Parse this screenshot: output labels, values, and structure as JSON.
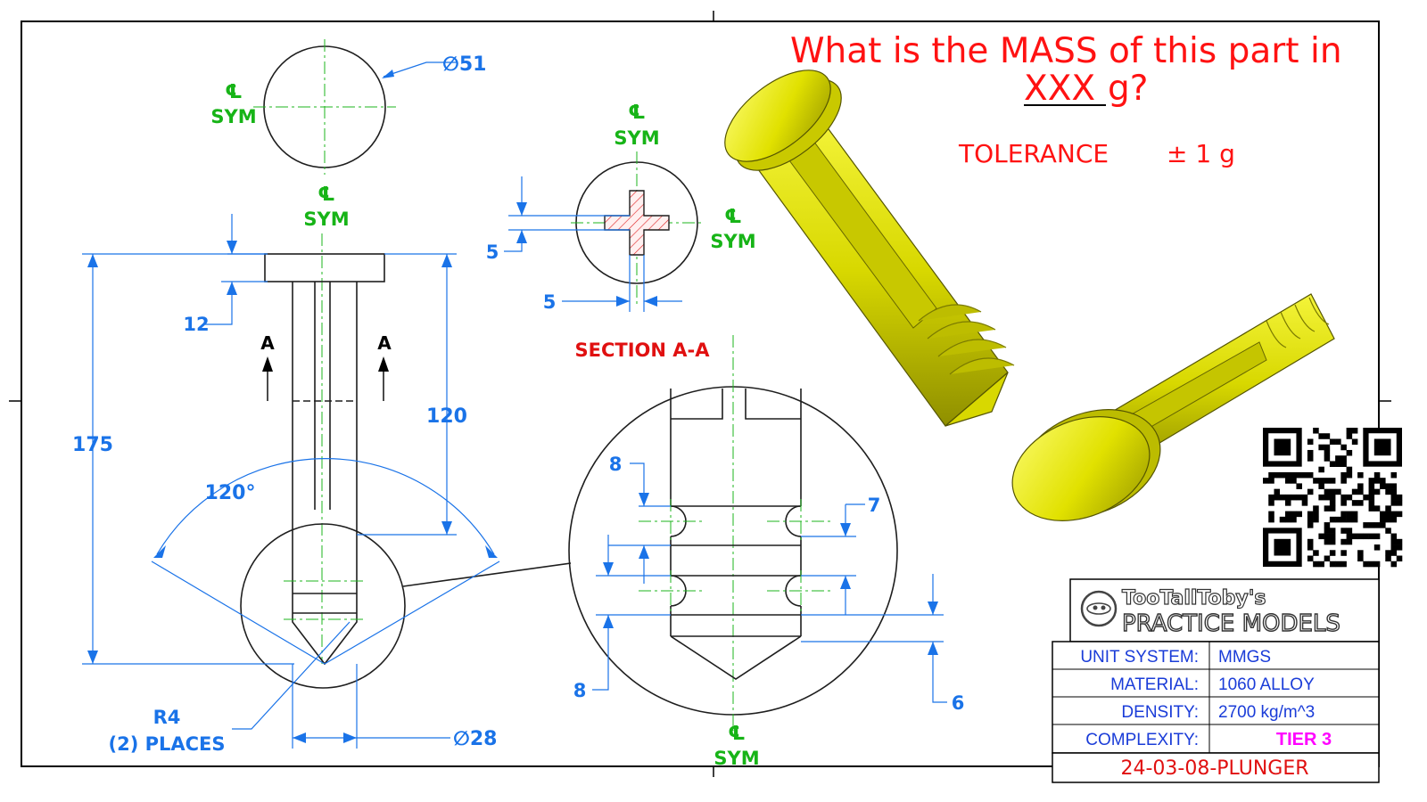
{
  "question": {
    "line1": "What is the MASS of this part in",
    "line2_underlined": "XXX",
    "line2_rest": " g?",
    "tolerance": "TOLERANCE",
    "tolerance_value": "± 1 g",
    "color": "#ff1212"
  },
  "dimensions": {
    "top_diameter": "∅51",
    "height_total": "175",
    "height_shaft": "120",
    "head_thickness": "12",
    "angle": "120°",
    "shaft_diameter": "∅28",
    "radius": "R4",
    "radius_places": "(2) PLACES",
    "section_slot_v": "5",
    "section_slot_h": "5",
    "detail_groove_top": "8",
    "detail_groove_width": "7",
    "detail_groove_bottom": "8",
    "detail_tip": "6",
    "color": "#1a73e8"
  },
  "labels": {
    "cl_symbol": "℄",
    "sym": "SYM",
    "section_marker": "A",
    "section_title": "SECTION A-A",
    "sym_color": "#17b417"
  },
  "title_block": {
    "brand_top": "TooTallToby's",
    "brand_bottom": "PRACTICE MODELS",
    "rows": [
      {
        "label": "UNIT SYSTEM:",
        "value": "MMGS"
      },
      {
        "label": "MATERIAL:",
        "value": "1060 ALLOY"
      },
      {
        "label": "DENSITY:",
        "value": "2700 kg/m^3"
      },
      {
        "label": "COMPLEXITY:",
        "value": "TIER 3"
      }
    ],
    "part_number": "24-03-08-PLUNGER",
    "tier_color": "#ff00ff",
    "text_color": "#1a3cd8"
  },
  "icons": [
    "qr-code-icon",
    "brand-logo-icon"
  ],
  "model_color": "#e6e600"
}
